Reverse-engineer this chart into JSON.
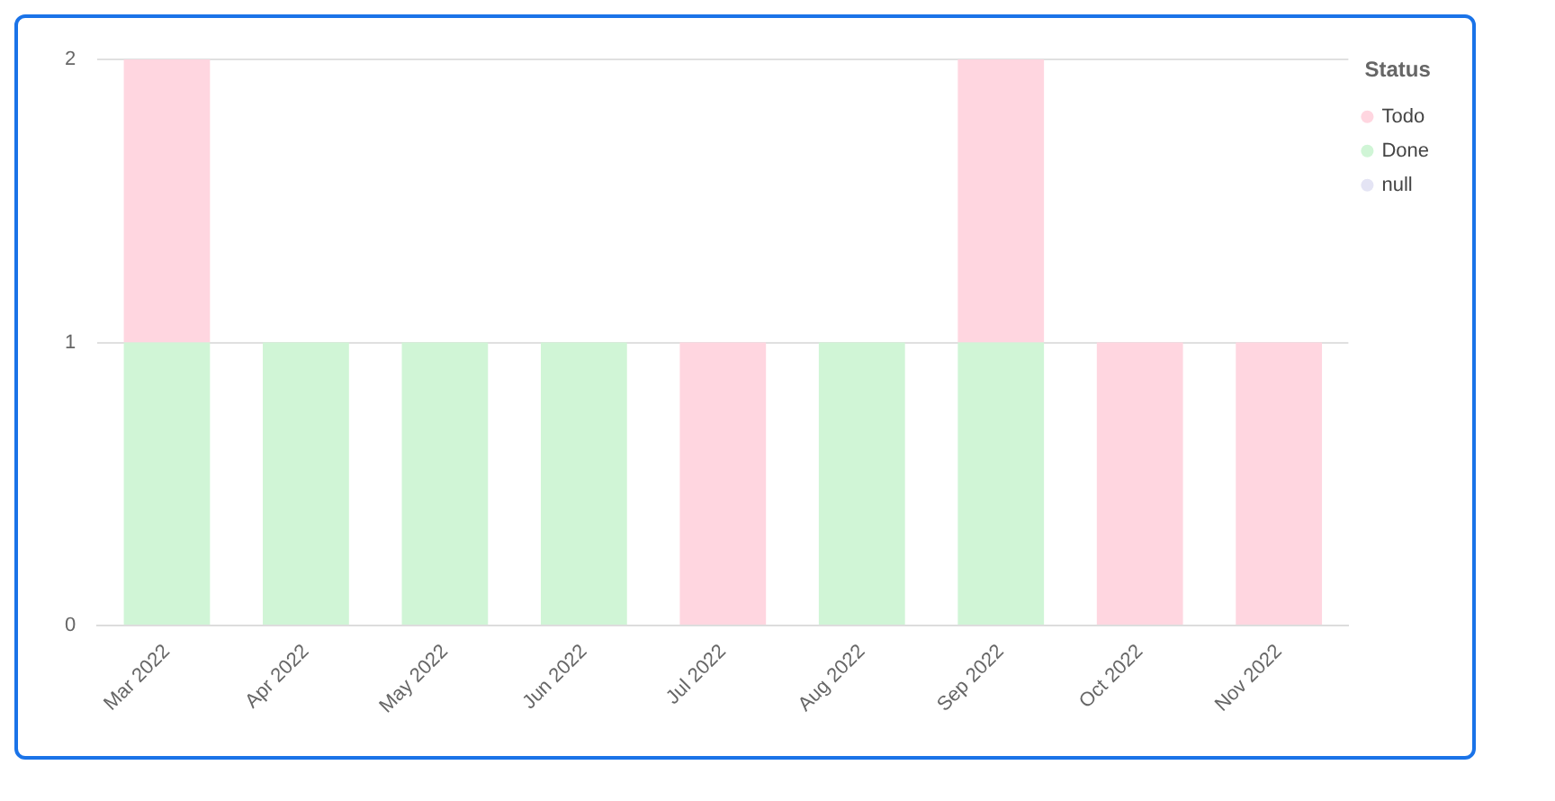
{
  "chart_data": {
    "type": "bar",
    "stacked": true,
    "legend_title": "Status",
    "legend": "top right",
    "grid": "y",
    "categories": [
      "Mar 2022",
      "Apr 2022",
      "May 2022",
      "Jun 2022",
      "Jul 2022",
      "Aug 2022",
      "Sep 2022",
      "Oct 2022",
      "Nov 2022"
    ],
    "series": [
      {
        "name": "null",
        "color": "#e4e4f4",
        "values": [
          null,
          null,
          null,
          null,
          null,
          null,
          null,
          null,
          null
        ]
      },
      {
        "name": "Done",
        "color": "#d0f5d6",
        "values": [
          1,
          1,
          1,
          1,
          null,
          1,
          1,
          null,
          null
        ]
      },
      {
        "name": "Todo",
        "color": "#ffd6e0",
        "values": [
          1,
          null,
          null,
          null,
          1,
          null,
          1,
          1,
          1
        ]
      }
    ],
    "ylim": [
      0,
      2
    ],
    "yticks": [
      0,
      1,
      2
    ]
  }
}
